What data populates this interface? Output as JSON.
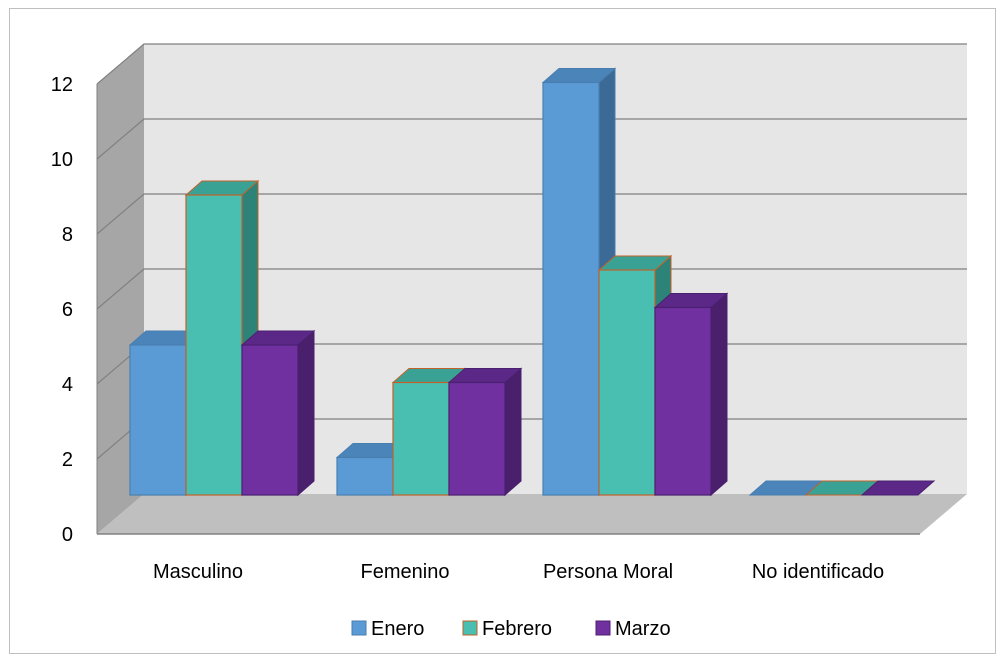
{
  "chart_data": {
    "type": "bar",
    "style": "3d-clustered-column",
    "categories": [
      "Masculino",
      "Femenino",
      "Persona Moral",
      "No identificado"
    ],
    "series": [
      {
        "name": "Enero",
        "values": [
          4,
          1,
          11,
          0
        ],
        "color": "#5b9bd5",
        "side_color": "#3b6a96",
        "top_color": "#4a84b8",
        "edge_color": "#4a7eb0"
      },
      {
        "name": "Febrero",
        "values": [
          8,
          3,
          6,
          0
        ],
        "color": "#48bfb0",
        "side_color": "#2e8378",
        "top_color": "#3aa294",
        "edge_color": "#c0622a"
      },
      {
        "name": "Marzo",
        "values": [
          4,
          3,
          5,
          0
        ],
        "color": "#7030a0",
        "side_color": "#4a1f6b",
        "top_color": "#5c2887",
        "edge_color": "#4a2070"
      }
    ],
    "y_ticks": [
      "0",
      "2",
      "4",
      "6",
      "8",
      "10",
      "12"
    ],
    "ylim": [
      0,
      12
    ],
    "grid": true,
    "legend": "bottom",
    "title": "",
    "xlabel": "",
    "ylabel": ""
  }
}
